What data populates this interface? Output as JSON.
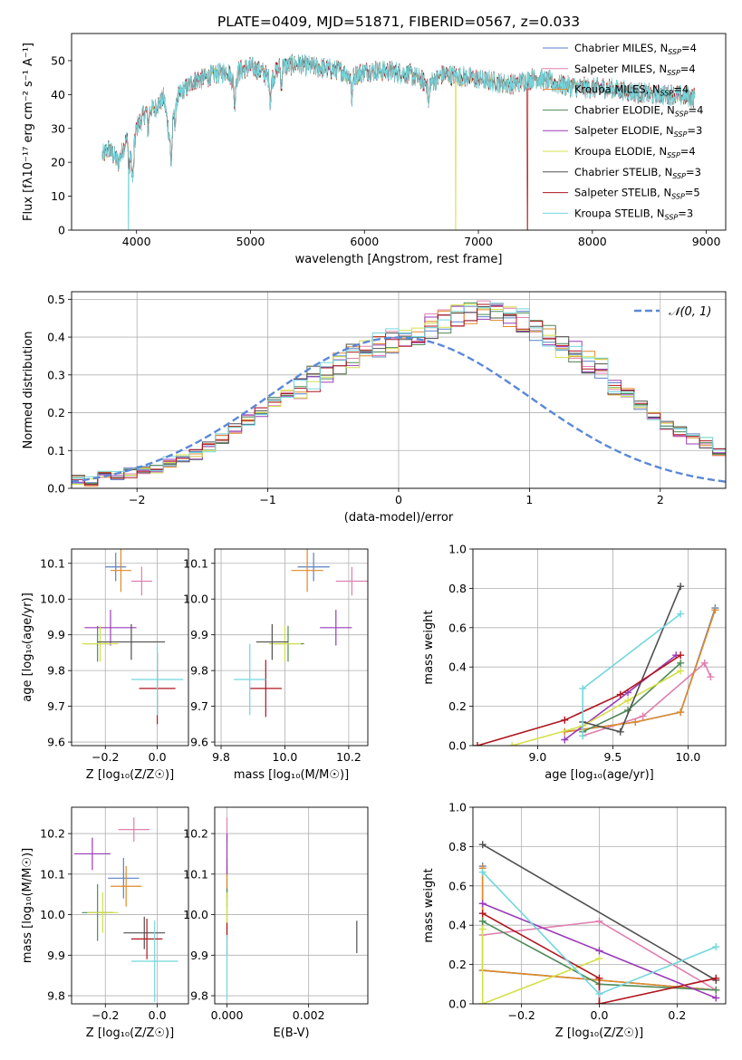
{
  "figure_title": "PLATE=0409, MJD=51871, FIBERID=0567, z=0.033",
  "colors": [
    "#5a80c8",
    "#e07fae",
    "#e08a28",
    "#4f8a58",
    "#9a3ab8",
    "#d4e048",
    "#505050",
    "#b0151e",
    "#72d7dc"
  ],
  "chart_data": [
    {
      "type": "line",
      "title": "PLATE=0409, MJD=51871, FIBERID=0567, z=0.033",
      "xlabel": "wavelength [Angstrom, rest frame]",
      "ylabel": "Flux [fλ10⁻¹⁷ erg cm⁻² s⁻¹ A⁻¹]",
      "xlim": [
        3430,
        9170
      ],
      "ylim": [
        0,
        58
      ],
      "xticks": [
        4000,
        5000,
        6000,
        7000,
        8000,
        9000
      ],
      "yticks": [
        0,
        10,
        20,
        30,
        40,
        50
      ],
      "grid": false,
      "legend_position": "top-right",
      "spectrum_knots": {
        "x": [
          3700,
          3760,
          3800,
          3840,
          3880,
          3920,
          3960,
          4000,
          4080,
          4160,
          4240,
          4300,
          4340,
          4400,
          4500,
          4600,
          4700,
          4800,
          4860,
          4900,
          5000,
          5100,
          5175,
          5250,
          5400,
          5600,
          5800,
          5890,
          6000,
          6200,
          6400,
          6562,
          6700,
          6900,
          7100,
          7300,
          7500,
          7700,
          7900,
          8100,
          8300,
          8500,
          8700,
          8900
        ],
        "y": [
          22,
          24,
          22,
          20,
          24,
          27,
          19,
          30,
          35,
          36,
          39,
          25,
          38,
          41,
          44,
          45,
          46,
          47,
          43,
          47,
          48,
          47,
          44,
          48,
          49,
          48,
          47,
          45,
          47,
          47,
          46,
          43,
          46,
          45,
          44,
          43,
          45,
          43,
          42,
          42,
          41,
          40,
          40,
          39
        ]
      },
      "spectrum_drop_outs": [
        {
          "series": "Kroupa STELIB, N_SSP=3",
          "x": 3930
        },
        {
          "series": "Kroupa ELODIE, N_SSP=4",
          "x": 6800
        },
        {
          "series": "Salpeter STELIB, N_SSP=5",
          "x": 7430
        }
      ],
      "series": [
        {
          "name": "Chabrier MILES, N",
          "sub": "SSP",
          "suffix": "=4"
        },
        {
          "name": "Salpeter MILES, N",
          "sub": "SSP",
          "suffix": "=4"
        },
        {
          "name": "Kroupa MILES, N",
          "sub": "SSP",
          "suffix": "=4"
        },
        {
          "name": "Chabrier ELODIE, N",
          "sub": "SSP",
          "suffix": "=4"
        },
        {
          "name": "Salpeter ELODIE, N",
          "sub": "SSP",
          "suffix": "=3"
        },
        {
          "name": "Kroupa ELODIE, N",
          "sub": "SSP",
          "suffix": "=4"
        },
        {
          "name": "Chabrier STELIB, N",
          "sub": "SSP",
          "suffix": "=3"
        },
        {
          "name": "Salpeter STELIB, N",
          "sub": "SSP",
          "suffix": "=5"
        },
        {
          "name": "Kroupa STELIB, N",
          "sub": "SSP",
          "suffix": "=3"
        }
      ]
    },
    {
      "type": "area",
      "title": "",
      "xlabel": "(data-model)/error",
      "ylabel": "Normed distribution",
      "xlim": [
        -2.5,
        2.5
      ],
      "ylim": [
        0,
        0.52
      ],
      "xticks": [
        -2,
        -1,
        0,
        1,
        2
      ],
      "xtick_labels": [
        "−2",
        "−1",
        "0",
        "1",
        "2"
      ],
      "yticks": [
        0.0,
        0.1,
        0.2,
        0.3,
        0.4,
        0.5
      ],
      "grid": true,
      "legend_position": "top-right",
      "legend": [
        "𝒩(0, 1)"
      ],
      "bin_width": 0.1,
      "base_histogram": [
        0.02,
        0.02,
        0.03,
        0.03,
        0.04,
        0.05,
        0.05,
        0.07,
        0.08,
        0.09,
        0.11,
        0.13,
        0.16,
        0.18,
        0.2,
        0.23,
        0.25,
        0.27,
        0.29,
        0.31,
        0.33,
        0.35,
        0.37,
        0.38,
        0.39,
        0.4,
        0.41,
        0.43,
        0.44,
        0.45,
        0.46,
        0.47,
        0.47,
        0.46,
        0.44,
        0.42,
        0.4,
        0.38,
        0.36,
        0.33,
        0.31,
        0.28,
        0.25,
        0.22,
        0.19,
        0.17,
        0.15,
        0.13,
        0.12,
        0.1,
        0.08,
        0.07,
        0.06,
        0.05,
        0.045,
        0.04,
        0.035,
        0.03,
        0.025,
        0.02,
        0.02,
        0.02,
        0.02,
        0.02,
        0.02,
        0.02,
        0.02,
        0.02,
        0.02,
        0.02
      ],
      "base_histogram_x0": -2.5,
      "normal_curve": {
        "mean": 0,
        "sigma": 1
      }
    },
    {
      "type": "scatter",
      "panel": "age vs Z",
      "xlabel": "Z [log₁₀(Z/Z☉)]",
      "ylabel": "age  [log₁₀(age/yr)]",
      "xlim": [
        -0.33,
        0.12
      ],
      "ylim": [
        9.59,
        10.14
      ],
      "xticks": [
        -0.2,
        0.0
      ],
      "xtick_labels": [
        "−0.2",
        "0.0"
      ],
      "yticks": [
        9.6,
        9.7,
        9.8,
        9.9,
        10.0,
        10.1
      ],
      "grid": true,
      "points": [
        {
          "x": -0.16,
          "y": 10.09,
          "xerr": 0.04,
          "yerr": 0.04
        },
        {
          "x": -0.06,
          "y": 10.05,
          "xerr": 0.04,
          "yerr": 0.04
        },
        {
          "x": -0.14,
          "y": 10.08,
          "xerr": 0.04,
          "yerr": 0.06
        },
        {
          "x": -0.23,
          "y": 9.875,
          "xerr": 0.05,
          "yerr": 0.05
        },
        {
          "x": -0.18,
          "y": 9.92,
          "xerr": 0.1,
          "yerr": 0.05
        },
        {
          "x": -0.22,
          "y": 9.875,
          "xerr": 0.07,
          "yerr": 0.05
        },
        {
          "x": -0.1,
          "y": 9.88,
          "xerr": 0.13,
          "yerr": 0.05
        },
        {
          "x": -0.0,
          "y": 9.75,
          "xerr": 0.07,
          "yerr": 0.1
        },
        {
          "x": 0.0,
          "y": 9.775,
          "xerr": 0.1,
          "yerr": 0.1
        }
      ]
    },
    {
      "type": "scatter",
      "panel": "age vs mass",
      "xlabel": "mass [log₁₀(M/M☉)]",
      "ylabel": "",
      "xlim": [
        9.78,
        10.26
      ],
      "ylim": [
        9.59,
        10.14
      ],
      "xticks": [
        9.8,
        10.0,
        10.2
      ],
      "yticks": [
        9.6,
        9.7,
        9.8,
        9.9,
        10.0,
        10.1
      ],
      "grid": true,
      "points": [
        {
          "x": 10.09,
          "y": 10.09,
          "xerr": 0.05,
          "yerr": 0.04
        },
        {
          "x": 10.21,
          "y": 10.05,
          "xerr": 0.05,
          "yerr": 0.04
        },
        {
          "x": 10.07,
          "y": 10.08,
          "xerr": 0.05,
          "yerr": 0.06
        },
        {
          "x": 10.01,
          "y": 9.875,
          "xerr": 0.05,
          "yerr": 0.05
        },
        {
          "x": 10.16,
          "y": 9.92,
          "xerr": 0.05,
          "yerr": 0.05
        },
        {
          "x": 10.0,
          "y": 9.875,
          "xerr": 0.05,
          "yerr": 0.05
        },
        {
          "x": 9.96,
          "y": 9.88,
          "xerr": 0.05,
          "yerr": 0.05
        },
        {
          "x": 9.94,
          "y": 9.75,
          "xerr": 0.05,
          "yerr": 0.08
        },
        {
          "x": 9.89,
          "y": 9.775,
          "xerr": 0.05,
          "yerr": 0.1
        }
      ]
    },
    {
      "type": "line",
      "panel": "mass weight vs age",
      "xlabel": "age  [log₁₀(age/yr)]",
      "ylabel": "mass weight",
      "xlim": [
        8.57,
        10.25
      ],
      "ylim": [
        0,
        1
      ],
      "xticks": [
        9.0,
        9.5,
        10.0
      ],
      "yticks": [
        0.0,
        0.2,
        0.4,
        0.6,
        0.8,
        1.0
      ],
      "grid": true,
      "series": [
        {
          "x": [
            9.18,
            9.65,
            9.95,
            10.18
          ],
          "y": [
            0.07,
            0.12,
            0.17,
            0.7
          ]
        },
        {
          "x": [
            9.3,
            9.7,
            10.11,
            10.15
          ],
          "y": [
            0.05,
            0.15,
            0.42,
            0.35
          ]
        },
        {
          "x": [
            9.18,
            9.65,
            9.95,
            10.18
          ],
          "y": [
            0.07,
            0.12,
            0.17,
            0.69
          ]
        },
        {
          "x": [
            9.3,
            9.6,
            9.95
          ],
          "y": [
            0.07,
            0.18,
            0.42
          ]
        },
        {
          "x": [
            9.18,
            9.6,
            9.92
          ],
          "y": [
            0.03,
            0.27,
            0.46
          ]
        },
        {
          "x": [
            8.83,
            9.3,
            9.6,
            9.95
          ],
          "y": [
            0.0,
            0.1,
            0.23,
            0.38
          ]
        },
        {
          "x": [
            9.3,
            9.55,
            9.95
          ],
          "y": [
            0.12,
            0.07,
            0.81
          ]
        },
        {
          "x": [
            8.6,
            9.18,
            9.55,
            9.95
          ],
          "y": [
            0.0,
            0.13,
            0.26,
            0.46
          ]
        },
        {
          "x": [
            9.3,
            9.3,
            9.95
          ],
          "y": [
            0.05,
            0.29,
            0.67
          ]
        }
      ]
    },
    {
      "type": "scatter",
      "panel": "mass vs Z",
      "xlabel": "Z [log₁₀(Z/Z☉)]",
      "ylabel": "mass [log₁₀(M/M☉)]",
      "xlim": [
        -0.33,
        0.12
      ],
      "ylim": [
        9.78,
        10.265
      ],
      "xticks": [
        -0.2,
        0.0
      ],
      "xtick_labels": [
        "−0.2",
        "0.0"
      ],
      "yticks": [
        9.8,
        9.9,
        10.0,
        10.1,
        10.2
      ],
      "grid": true,
      "points": [
        {
          "x": -0.13,
          "y": 10.09,
          "xerr": 0.06,
          "yerr": 0.05
        },
        {
          "x": -0.09,
          "y": 10.21,
          "xerr": 0.06,
          "yerr": 0.03
        },
        {
          "x": -0.12,
          "y": 10.07,
          "xerr": 0.06,
          "yerr": 0.05
        },
        {
          "x": -0.23,
          "y": 10.005,
          "xerr": 0.06,
          "yerr": 0.07
        },
        {
          "x": -0.25,
          "y": 10.15,
          "xerr": 0.07,
          "yerr": 0.04
        },
        {
          "x": -0.21,
          "y": 10.005,
          "xerr": 0.06,
          "yerr": 0.05
        },
        {
          "x": -0.05,
          "y": 9.955,
          "xerr": 0.08,
          "yerr": 0.04
        },
        {
          "x": -0.04,
          "y": 9.94,
          "xerr": 0.06,
          "yerr": 0.05
        },
        {
          "x": -0.01,
          "y": 9.885,
          "xerr": 0.09,
          "yerr": 0.1
        }
      ]
    },
    {
      "type": "scatter",
      "panel": "mass vs E(B-V)",
      "xlabel": "E(B-V)",
      "ylabel": "",
      "xlim": [
        -0.0003,
        0.00345
      ],
      "ylim": [
        9.78,
        10.265
      ],
      "xticks": [
        0.0,
        0.002
      ],
      "xtick_labels": [
        "0.000",
        "0.002"
      ],
      "yticks": [
        9.8,
        9.9,
        10.0,
        10.1,
        10.2
      ],
      "grid": true,
      "points": [
        {
          "x": 0.0,
          "y": 10.09,
          "xerr": 0,
          "yerr": 0.05
        },
        {
          "x": 0.0,
          "y": 10.21,
          "xerr": 0,
          "yerr": 0.03
        },
        {
          "x": 0.0,
          "y": 10.07,
          "xerr": 0,
          "yerr": 0.05
        },
        {
          "x": 0.0,
          "y": 10.005,
          "xerr": 0,
          "yerr": 0.06
        },
        {
          "x": 0.0,
          "y": 10.15,
          "xerr": 0,
          "yerr": 0.05
        },
        {
          "x": 0.0,
          "y": 10.005,
          "xerr": 0,
          "yerr": 0.05
        },
        {
          "x": 0.00318,
          "y": 9.945,
          "xerr": 0,
          "yerr": 0.04
        },
        {
          "x": 0.0,
          "y": 9.94,
          "xerr": 0,
          "yerr": 0.04
        },
        {
          "x": 0.0,
          "y": 9.87,
          "xerr": 0,
          "yerr": 0.08
        }
      ]
    },
    {
      "type": "line",
      "panel": "mass weight vs Z",
      "xlabel": "Z [log₁₀(Z/Z☉)]",
      "ylabel": "mass weight",
      "xlim": [
        -0.325,
        0.325
      ],
      "ylim": [
        0,
        1
      ],
      "xticks": [
        -0.2,
        0.0,
        0.2
      ],
      "xtick_labels": [
        "−0.2",
        "0.0",
        "0.2"
      ],
      "yticks": [
        0.0,
        0.2,
        0.4,
        0.6,
        0.8,
        1.0
      ],
      "grid": true,
      "series": [
        {
          "x": [
            -0.3,
            -0.3,
            0.3
          ],
          "y": [
            0.7,
            0.17,
            0.07
          ]
        },
        {
          "x": [
            -0.3,
            0.0,
            0.3
          ],
          "y": [
            0.35,
            0.42,
            0.07
          ]
        },
        {
          "x": [
            -0.3,
            -0.3,
            0.3
          ],
          "y": [
            0.69,
            0.17,
            0.07
          ]
        },
        {
          "x": [
            -0.3,
            0.0,
            0.3
          ],
          "y": [
            0.42,
            0.1,
            0.07
          ]
        },
        {
          "x": [
            -0.3,
            0.0,
            0.3
          ],
          "y": [
            0.51,
            0.27,
            0.03
          ]
        },
        {
          "x": [
            -0.3,
            -0.3,
            0.0
          ],
          "y": [
            0.38,
            0.0,
            0.23
          ]
        },
        {
          "x": [
            -0.3,
            0.3
          ],
          "y": [
            0.81,
            0.12
          ]
        },
        {
          "x": [
            -0.3,
            0.0,
            0.0,
            0.3
          ],
          "y": [
            0.46,
            0.13,
            0.0,
            0.13
          ]
        },
        {
          "x": [
            -0.3,
            0.0,
            0.3
          ],
          "y": [
            0.67,
            0.05,
            0.29
          ]
        }
      ]
    }
  ]
}
